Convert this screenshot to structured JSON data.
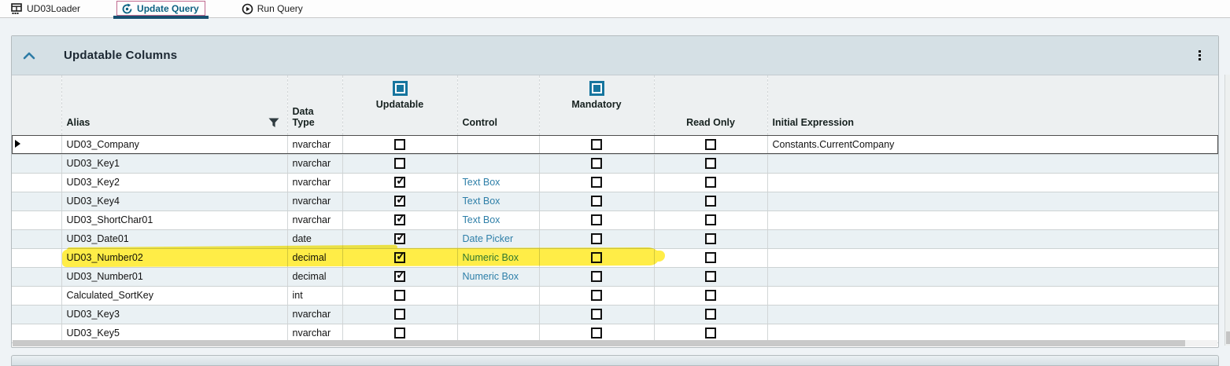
{
  "tabs": [
    {
      "label": "UD03Loader",
      "icon": "grid-table-icon",
      "active": false
    },
    {
      "label": "Update Query",
      "icon": "sync-gear-icon",
      "active": true,
      "annotated": true
    },
    {
      "label": "Run Query",
      "icon": "play-circle-icon",
      "active": false
    }
  ],
  "panel": {
    "title": "Updatable Columns",
    "collapse_icon": "chevron-up-icon",
    "menu_icon": "kebab-menu-icon"
  },
  "table": {
    "columns": {
      "alias": "Alias",
      "data_type": "Data Type",
      "updatable": "Updatable",
      "control": "Control",
      "mandatory": "Mandatory",
      "read_only": "Read Only",
      "initial_expression": "Initial Expression"
    },
    "header_icons": [
      "filter-funnel-icon",
      "updatable-header-checkbox-icon",
      "mandatory-header-checkbox-icon"
    ],
    "rows": [
      {
        "alias": "UD03_Company",
        "data_type": "nvarchar",
        "updatable": false,
        "control": "",
        "mandatory": false,
        "read_only": false,
        "initial_expression": "Constants.CurrentCompany",
        "selected": true,
        "highlighted": false
      },
      {
        "alias": "UD03_Key1",
        "data_type": "nvarchar",
        "updatable": false,
        "control": "",
        "mandatory": false,
        "read_only": false,
        "initial_expression": "",
        "selected": false,
        "highlighted": false
      },
      {
        "alias": "UD03_Key2",
        "data_type": "nvarchar",
        "updatable": true,
        "control": "Text Box",
        "mandatory": false,
        "read_only": false,
        "initial_expression": "",
        "selected": false,
        "highlighted": false
      },
      {
        "alias": "UD03_Key4",
        "data_type": "nvarchar",
        "updatable": true,
        "control": "Text Box",
        "mandatory": false,
        "read_only": false,
        "initial_expression": "",
        "selected": false,
        "highlighted": false
      },
      {
        "alias": "UD03_ShortChar01",
        "data_type": "nvarchar",
        "updatable": true,
        "control": "Text Box",
        "mandatory": false,
        "read_only": false,
        "initial_expression": "",
        "selected": false,
        "highlighted": false
      },
      {
        "alias": "UD03_Date01",
        "data_type": "date",
        "updatable": true,
        "control": "Date Picker",
        "mandatory": false,
        "read_only": false,
        "initial_expression": "",
        "selected": false,
        "highlighted": false
      },
      {
        "alias": "UD03_Number02",
        "data_type": "decimal",
        "updatable": true,
        "control": "Numeric Box",
        "mandatory": false,
        "read_only": false,
        "initial_expression": "",
        "selected": false,
        "highlighted": true
      },
      {
        "alias": "UD03_Number01",
        "data_type": "decimal",
        "updatable": true,
        "control": "Numeric Box",
        "mandatory": false,
        "read_only": false,
        "initial_expression": "",
        "selected": false,
        "highlighted": false
      },
      {
        "alias": "Calculated_SortKey",
        "data_type": "int",
        "updatable": false,
        "control": "",
        "mandatory": false,
        "read_only": false,
        "initial_expression": "",
        "selected": false,
        "highlighted": false
      },
      {
        "alias": "UD03_Key3",
        "data_type": "nvarchar",
        "updatable": false,
        "control": "",
        "mandatory": false,
        "read_only": false,
        "initial_expression": "",
        "selected": false,
        "highlighted": false
      },
      {
        "alias": "UD03_Key5",
        "data_type": "nvarchar",
        "updatable": false,
        "control": "",
        "mandatory": false,
        "read_only": false,
        "initial_expression": "",
        "selected": false,
        "highlighted": false
      }
    ]
  },
  "colors": {
    "accent": "#0d6283",
    "active_tab_underline": "#174f70",
    "annotation_box": "#c06a8f",
    "link": "#2e7fa8",
    "header_checkbox": "#16759e",
    "highlight_marker": "#ffe600",
    "panel_header_bg": "#d5e0e5",
    "alt_row_bg": "#eaf1f4"
  }
}
